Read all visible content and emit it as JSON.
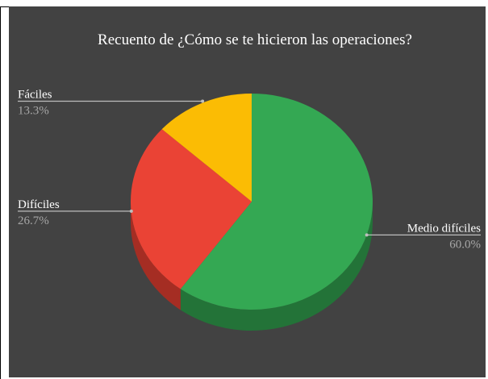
{
  "chart_data": {
    "type": "pie",
    "title": "Recuento de ¿Cómo se te hicieron las operaciones?",
    "slices": [
      {
        "label": "Medio difíciles",
        "value": 60.0,
        "display": "60.0%",
        "color": "#34a853",
        "side": "#237338"
      },
      {
        "label": "Difíciles",
        "value": 26.7,
        "display": "26.7%",
        "color": "#ea4335",
        "side": "#a52d23"
      },
      {
        "label": "Fáciles",
        "value": 13.3,
        "display": "13.3%",
        "color": "#fbbc04",
        "side": "#b08603"
      }
    ],
    "background": "#424242",
    "legend": "callout labels"
  }
}
